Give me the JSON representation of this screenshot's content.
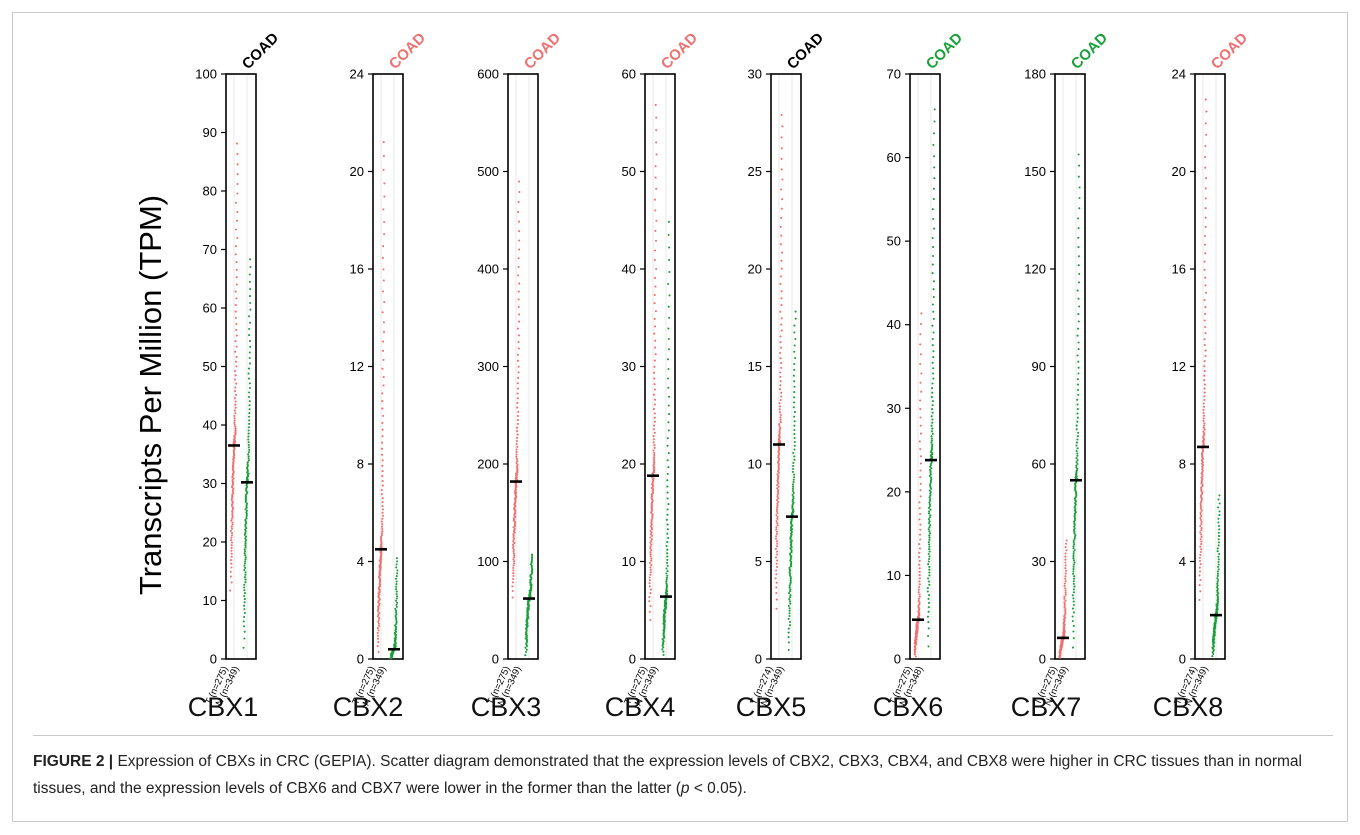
{
  "ylabel": "Transcripts Per Million (TPM)",
  "caption": {
    "label": "FIGURE 2 |",
    "text_a": " Expression of CBXs in CRC (GEPIA). Scatter diagram demonstrated that the expression levels of CBX2, CBX3, CBX4, and CBX8 were higher in CRC tissues than in normal tissues, and the expression levels of CBX6 and CBX7 were lower in the former than the latter (",
    "p_symbol": "p",
    "text_b": " < 0.05)."
  },
  "colors": {
    "tumor": "#f07070",
    "normal": "#1aa03a",
    "neutral": "#000000",
    "axis": "#000000",
    "median": "#000000"
  },
  "chart_data": [
    {
      "type": "scatter",
      "name": "CBX1",
      "title": "COAD",
      "title_color": "#000000",
      "ylim": [
        0,
        100
      ],
      "yticks": [
        0,
        10,
        20,
        30,
        40,
        50,
        60,
        70,
        80,
        90,
        100
      ],
      "groups": [
        "T (n=275)",
        "N (n=349)"
      ],
      "n": [
        275,
        349
      ],
      "medians": [
        36.5,
        30.2
      ],
      "ranges": [
        [
          10,
          89
        ],
        [
          0,
          69
        ]
      ]
    },
    {
      "type": "scatter",
      "name": "CBX2",
      "title": "COAD",
      "title_color": "#f07070",
      "ylim": [
        0,
        24
      ],
      "yticks": [
        0,
        4,
        8,
        12,
        16,
        20,
        24
      ],
      "groups": [
        "T (n=275)",
        "N (n=349)"
      ],
      "n": [
        275,
        349
      ],
      "medians": [
        4.5,
        0.4
      ],
      "ranges": [
        [
          0,
          21.5
        ],
        [
          0,
          4.2
        ]
      ]
    },
    {
      "type": "scatter",
      "name": "CBX3",
      "title": "COAD",
      "title_color": "#f07070",
      "ylim": [
        0,
        600
      ],
      "yticks": [
        0,
        100,
        200,
        300,
        400,
        500,
        600
      ],
      "groups": [
        "T (n=275)",
        "N (n=349)"
      ],
      "n": [
        275,
        349
      ],
      "medians": [
        182,
        62
      ],
      "ranges": [
        [
          55,
          495
        ],
        [
          0,
          108
        ]
      ]
    },
    {
      "type": "scatter",
      "name": "CBX4",
      "title": "COAD",
      "title_color": "#f07070",
      "ylim": [
        0,
        60
      ],
      "yticks": [
        0,
        10,
        20,
        30,
        40,
        50,
        60
      ],
      "groups": [
        "T (n=275)",
        "N (n=349)"
      ],
      "n": [
        275,
        349
      ],
      "medians": [
        18.8,
        6.4
      ],
      "ranges": [
        [
          3,
          57.5
        ],
        [
          0,
          45.5
        ]
      ]
    },
    {
      "type": "scatter",
      "name": "CBX5",
      "title": "COAD",
      "title_color": "#000000",
      "ylim": [
        0,
        30
      ],
      "yticks": [
        0,
        5,
        10,
        15,
        20,
        25,
        30
      ],
      "groups": [
        "T (n=274)",
        "N (n=349)"
      ],
      "n": [
        274,
        349
      ],
      "medians": [
        11,
        7.3
      ],
      "ranges": [
        [
          2,
          28.2
        ],
        [
          0,
          18
        ]
      ]
    },
    {
      "type": "scatter",
      "name": "CBX6",
      "title": "COAD",
      "title_color": "#1aa03a",
      "ylim": [
        0,
        70
      ],
      "yticks": [
        0,
        10,
        20,
        30,
        40,
        50,
        60,
        70
      ],
      "groups": [
        "T (n=275)",
        "N (n=348)"
      ],
      "n": [
        275,
        348
      ],
      "medians": [
        4.7,
        23.8
      ],
      "ranges": [
        [
          0,
          42
        ],
        [
          0,
          66.5
        ]
      ]
    },
    {
      "type": "scatter",
      "name": "CBX7",
      "title": "COAD",
      "title_color": "#1aa03a",
      "ylim": [
        0,
        180
      ],
      "yticks": [
        0,
        30,
        60,
        90,
        120,
        150,
        180
      ],
      "groups": [
        "T (n=275)",
        "N (n=349)"
      ],
      "n": [
        275,
        349
      ],
      "medians": [
        6.5,
        55
      ],
      "ranges": [
        [
          0,
          37
        ],
        [
          0,
          157
        ]
      ]
    },
    {
      "type": "scatter",
      "name": "CBX8",
      "title": "COAD",
      "title_color": "#f07070",
      "ylim": [
        0,
        24
      ],
      "yticks": [
        0,
        4,
        8,
        12,
        16,
        20,
        24
      ],
      "groups": [
        "T (n=274)",
        "N (n=349)"
      ],
      "n": [
        274,
        349
      ],
      "medians": [
        8.7,
        1.8
      ],
      "ranges": [
        [
          2,
          23.2
        ],
        [
          0,
          6.8
        ]
      ]
    }
  ]
}
